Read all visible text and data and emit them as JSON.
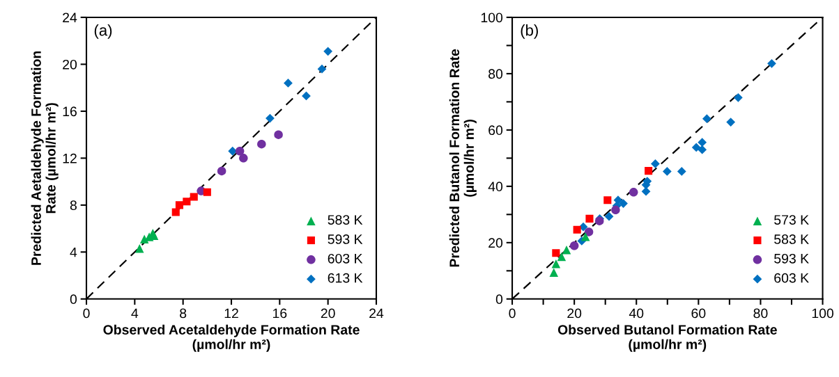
{
  "chart_data": [
    {
      "type": "scatter",
      "xlabel": "Observed Acetaldehyde Formation Rate\n(µmol/hr m²)",
      "ylabel": "Predicted Aetaldehyde Formation\nRate (µmol/hr m²)",
      "annotations": [
        "(a)"
      ],
      "xlim": [
        0,
        24
      ],
      "ylim": [
        0,
        24
      ],
      "xticks": [
        0,
        4,
        8,
        12,
        16,
        20,
        24
      ],
      "yticks": [
        0,
        4,
        8,
        12,
        16,
        20,
        24
      ],
      "grid": false,
      "legend": "bottom right",
      "series": [
        {
          "name": "583 K",
          "color": "#00b050",
          "marker": "triangle",
          "x": [
            4.4,
            4.8,
            5.2,
            5.5,
            5.6
          ],
          "values": [
            4.3,
            5.1,
            5.3,
            5.6,
            5.4
          ]
        },
        {
          "name": "593 K",
          "color": "#ff0000",
          "marker": "square",
          "x": [
            7.4,
            7.7,
            8.3,
            8.9,
            10.0
          ],
          "values": [
            7.4,
            8.0,
            8.3,
            8.7,
            9.1
          ]
        },
        {
          "name": "603 K",
          "color": "#7030a0",
          "marker": "circle",
          "x": [
            9.5,
            11.2,
            12.7,
            13.0,
            14.5,
            15.9
          ],
          "values": [
            9.2,
            10.9,
            12.6,
            12.0,
            13.2,
            14.0
          ]
        },
        {
          "name": "613 K",
          "color": "#0070c0",
          "marker": "diamond",
          "x": [
            12.1,
            15.2,
            16.7,
            18.2,
            19.5,
            20.0
          ],
          "values": [
            12.6,
            15.4,
            18.4,
            17.3,
            19.6,
            21.1
          ]
        },
        {
          "type": "line",
          "color": "#000000",
          "line_style": "dashed",
          "marker": "none",
          "x": [
            0,
            24
          ],
          "values": [
            0,
            24
          ]
        }
      ]
    },
    {
      "type": "scatter",
      "xlabel": "Observed Butanol Formation Rate\n(µmol/hr m²)",
      "ylabel": "Predicted Butanol Formation Rate\n(µmol/hr m²)",
      "annotations": [
        "(b)"
      ],
      "xlim": [
        0,
        100
      ],
      "ylim": [
        0,
        100
      ],
      "xticks": [
        0,
        {
          "value": 10,
          "label": null
        },
        20,
        {
          "value": 30,
          "label": null
        },
        40,
        {
          "value": 50,
          "label": null
        },
        60,
        {
          "value": 70,
          "label": null
        },
        80,
        {
          "value": 90,
          "label": null
        },
        100
      ],
      "yticks": [
        0,
        {
          "value": 10,
          "label": null
        },
        20,
        {
          "value": 30,
          "label": null
        },
        40,
        {
          "value": 50,
          "label": null
        },
        60,
        {
          "value": 70,
          "label": null
        },
        80,
        {
          "value": 90,
          "label": null
        },
        100
      ],
      "grid": false,
      "legend": "bottom right",
      "series": [
        {
          "name": "573 K",
          "color": "#00b050",
          "marker": "triangle",
          "x": [
            13.4,
            14.1,
            15.9,
            17.5,
            23.6
          ],
          "values": [
            9.4,
            12.5,
            15.0,
            17.4,
            22.1
          ]
        },
        {
          "name": "583 K",
          "color": "#ff0000",
          "marker": "square",
          "x": [
            14.1,
            20.9,
            24.9,
            30.7,
            43.9
          ],
          "values": [
            16.3,
            24.6,
            28.5,
            35.1,
            45.5
          ]
        },
        {
          "name": "593 K",
          "color": "#7030a0",
          "marker": "circle",
          "x": [
            20.0,
            24.7,
            28.1,
            33.3,
            39.1
          ],
          "values": [
            18.9,
            23.8,
            27.7,
            31.6,
            37.9
          ]
        },
        {
          "name": "603 K",
          "color": "#0070c0",
          "marker": "diamond",
          "x": [
            22.4,
            22.9,
            28.2,
            31.2,
            33.7,
            34.1,
            35.8,
            43.1,
            43.1,
            43.5,
            46.1,
            49.9,
            54.6,
            59.3,
            61.2,
            61.2,
            62.7,
            70.4,
            72.8,
            83.6
          ],
          "values": [
            20.6,
            25.6,
            28.5,
            29.3,
            33.1,
            35.1,
            33.9,
            38.2,
            40.5,
            41.8,
            48.0,
            45.3,
            45.3,
            53.8,
            55.6,
            53.0,
            64.0,
            62.8,
            71.5,
            83.6
          ]
        },
        {
          "type": "line",
          "color": "#000000",
          "line_style": "dashed",
          "marker": "none",
          "x": [
            0,
            100
          ],
          "values": [
            0,
            100
          ]
        }
      ]
    }
  ]
}
